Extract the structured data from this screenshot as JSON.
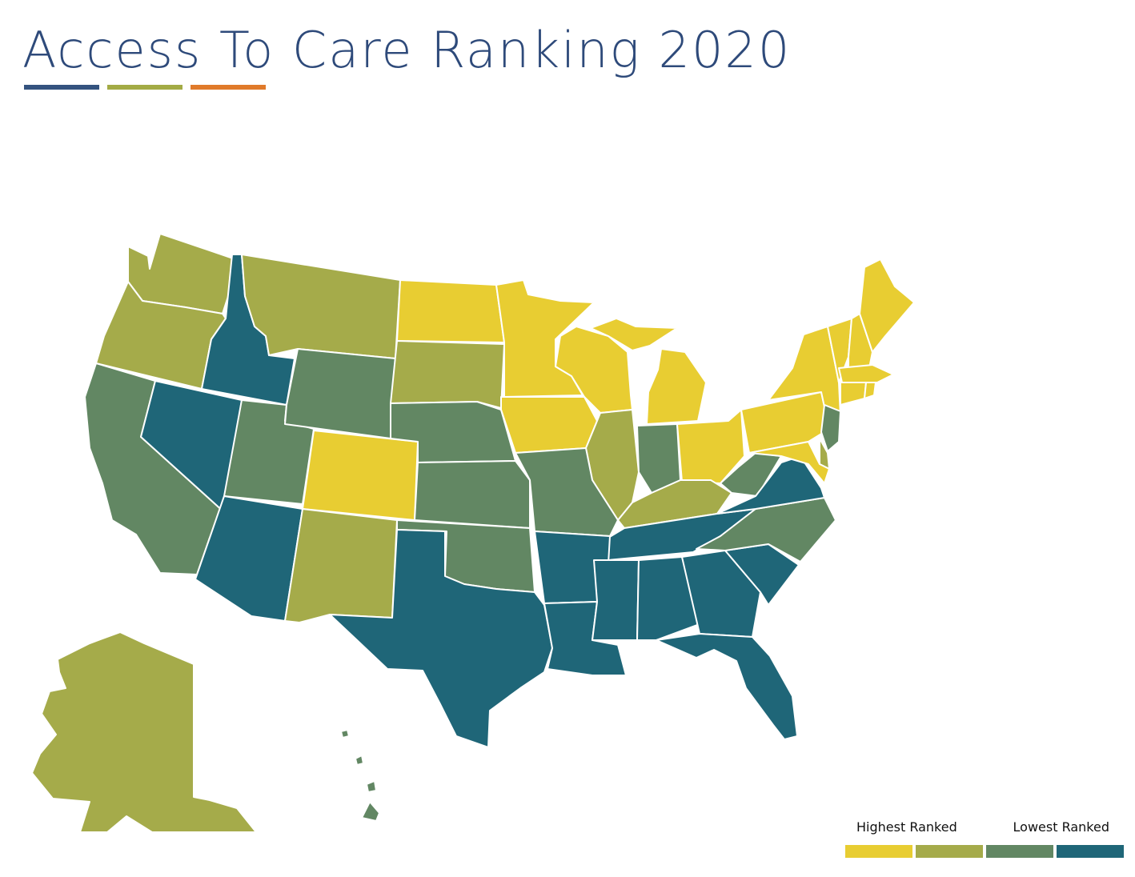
{
  "title": "Access To Care Ranking 2020",
  "title_bar_colors": [
    "#34537f",
    "#a3ab45",
    "#e07a2a"
  ],
  "legend": {
    "high_label": "Highest Ranked",
    "low_label": "Lowest Ranked",
    "colors": [
      "#e8cd32",
      "#a5ab4a",
      "#628763",
      "#1f6678"
    ]
  },
  "tiers": {
    "tier1_highest": [
      "North Dakota",
      "Minnesota",
      "Wisconsin",
      "Michigan",
      "Iowa",
      "Colorado",
      "Ohio",
      "Pennsylvania",
      "New York",
      "Vermont",
      "New Hampshire",
      "Maine",
      "Massachusetts",
      "Connecticut",
      "Rhode Island",
      "Maryland"
    ],
    "tier2": [
      "Washington",
      "Oregon",
      "Montana",
      "South Dakota",
      "Illinois",
      "Kentucky",
      "New Mexico",
      "Alaska",
      "Delaware"
    ],
    "tier3": [
      "California",
      "Utah",
      "Wyoming",
      "Nebraska",
      "Kansas",
      "Missouri",
      "Oklahoma",
      "Indiana",
      "West Virginia",
      "North Carolina",
      "New Jersey",
      "Hawaii"
    ],
    "tier4_lowest": [
      "Idaho",
      "Nevada",
      "Arizona",
      "Texas",
      "Arkansas",
      "Louisiana",
      "Mississippi",
      "Alabama",
      "Tennessee",
      "Georgia",
      "South Carolina",
      "Florida",
      "Virginia"
    ]
  }
}
